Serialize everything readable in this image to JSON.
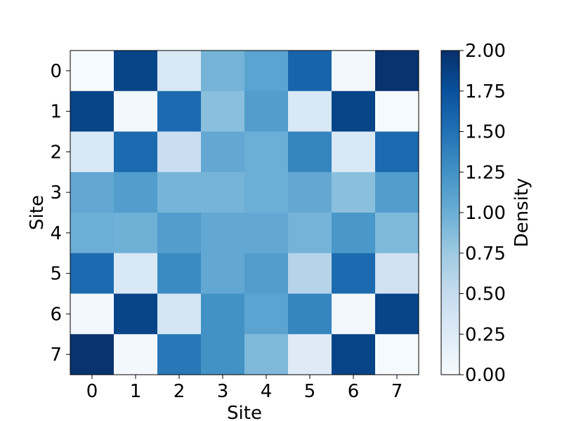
{
  "chart_data": {
    "type": "heatmap",
    "title": "",
    "xlabel": "Site",
    "ylabel": "Site",
    "x_categories": [
      "0",
      "1",
      "2",
      "3",
      "4",
      "5",
      "6",
      "7"
    ],
    "y_categories": [
      "0",
      "1",
      "2",
      "3",
      "4",
      "5",
      "6",
      "7"
    ],
    "values": [
      [
        0.02,
        1.85,
        0.3,
        0.95,
        1.1,
        1.6,
        0.04,
        1.98
      ],
      [
        1.85,
        0.05,
        1.55,
        0.85,
        1.15,
        0.3,
        1.85,
        0.02
      ],
      [
        0.3,
        1.55,
        0.45,
        1.05,
        1.0,
        1.35,
        0.3,
        1.55
      ],
      [
        1.05,
        1.15,
        0.95,
        0.95,
        1.0,
        1.05,
        0.85,
        1.15
      ],
      [
        1.0,
        0.98,
        1.15,
        1.05,
        1.05,
        0.95,
        1.2,
        0.9
      ],
      [
        1.55,
        0.3,
        1.3,
        1.05,
        1.15,
        0.6,
        1.55,
        0.4
      ],
      [
        0.05,
        1.85,
        0.35,
        1.25,
        1.1,
        1.35,
        0.05,
        1.85
      ],
      [
        1.98,
        0.04,
        1.45,
        1.25,
        0.9,
        0.25,
        1.85,
        0.02
      ]
    ],
    "colormap": "Blues",
    "vmin": 0.0,
    "vmax": 2.0,
    "colorbar": {
      "label": "Density",
      "ticks": [
        "0.00",
        "0.25",
        "0.50",
        "0.75",
        "1.00",
        "1.25",
        "1.50",
        "1.75",
        "2.00"
      ]
    },
    "grid": false,
    "legend": "none"
  }
}
